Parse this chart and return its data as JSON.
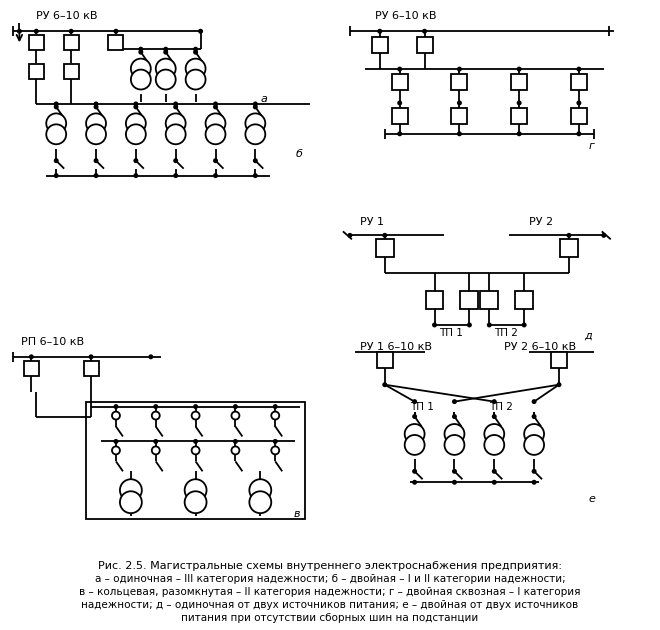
{
  "bg_color": "#ffffff",
  "lc": "#000000",
  "lw": 1.3,
  "title": "Рис. 2.5. Магистральные схемы внутреннего электроснабжения предприятия:",
  "captions": [
    "а – одиночная – III категория надежности; б – двойная – I и II категории надежности;",
    "в – кольцевая, разомкнутая – II категория надежности; г – двойная сквозная – I категория",
    "надежности; д – одиночная от двух источников питания; е – двойная от двух источников",
    "питания при отсутствии сборных шин на подстанции"
  ]
}
